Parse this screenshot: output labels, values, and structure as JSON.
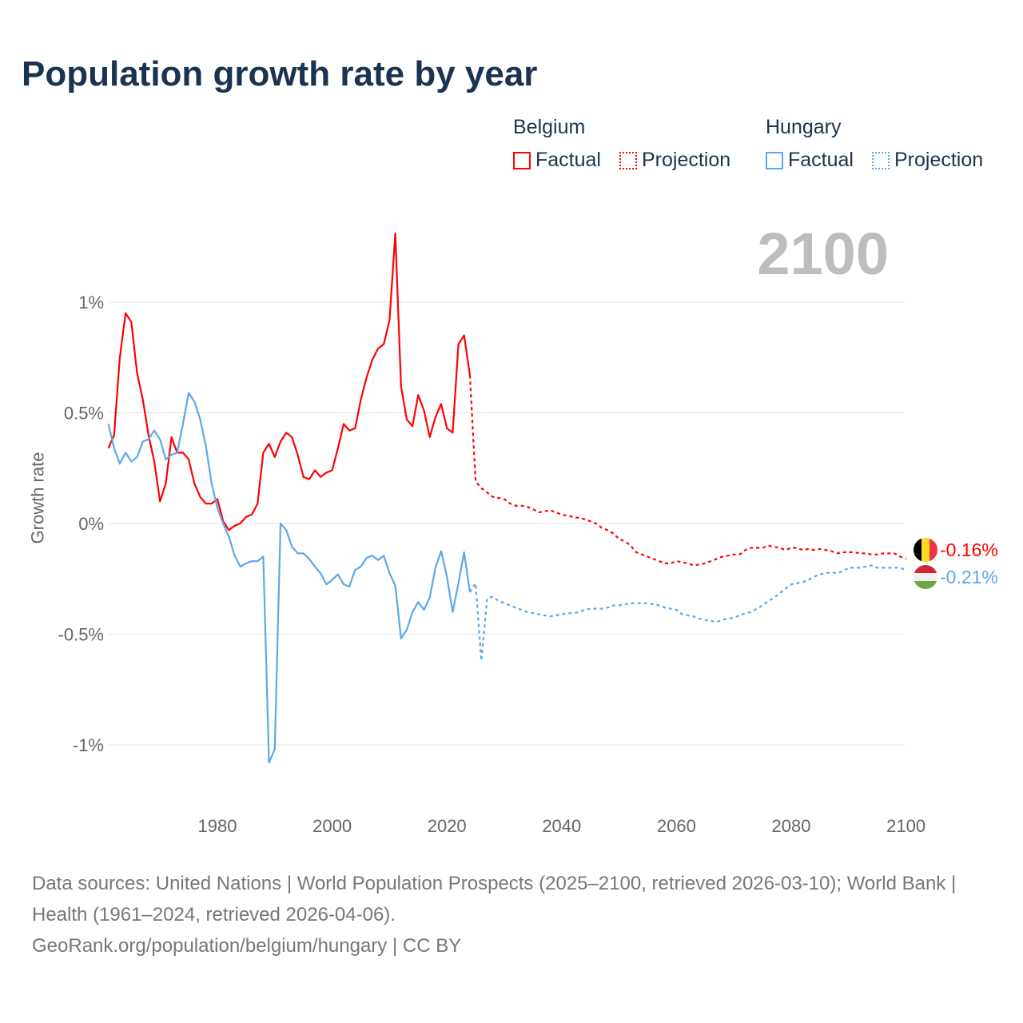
{
  "title": "Population growth rate by year",
  "current_year_label": "2100",
  "legend": {
    "groups": [
      {
        "name": "Belgium",
        "factual": "Factual",
        "projection": "Projection",
        "color": "#ff0000"
      },
      {
        "name": "Hungary",
        "factual": "Factual",
        "projection": "Projection",
        "color": "#5ca8ea"
      }
    ]
  },
  "end_labels": {
    "belgium": "-0.16%",
    "hungary": "-0.21%"
  },
  "footer": {
    "sources": "Data sources: United Nations | World Population Prospects (2025–2100, retrieved 2026-03-10); World Bank | Health (1961–2024, retrieved 2026-04-06).",
    "credit": "GeoRank.org/population/belgium/hungary | CC BY"
  },
  "chart_data": {
    "type": "line",
    "title": "Population growth rate by year",
    "xlabel": "",
    "ylabel": "Growth rate",
    "xlim": [
      1961,
      2100
    ],
    "ylim": [
      -1.15,
      1.35
    ],
    "x_ticks": [
      1980,
      2000,
      2020,
      2040,
      2060,
      2080,
      2100
    ],
    "x_tick_labels": [
      "1980",
      "2000",
      "2020",
      "2040",
      "2060",
      "2080",
      "2100"
    ],
    "y_ticks": [
      1,
      0.5,
      0,
      -0.5,
      -1
    ],
    "y_tick_labels": [
      "1%",
      "0.5%",
      "0%",
      "-0.5%",
      "-1%"
    ],
    "grid": true,
    "legend_position": "top-right",
    "series": [
      {
        "name": "Belgium Factual",
        "start_year": 1961,
        "style": "solid",
        "color": "#ff0000",
        "values": [
          0.34,
          0.4,
          0.75,
          0.95,
          0.91,
          0.68,
          0.56,
          0.4,
          0.28,
          0.1,
          0.18,
          0.39,
          0.32,
          0.32,
          0.29,
          0.18,
          0.12,
          0.09,
          0.09,
          0.11,
          0.01,
          -0.03,
          -0.01,
          0.0,
          0.03,
          0.04,
          0.09,
          0.32,
          0.36,
          0.3,
          0.37,
          0.41,
          0.39,
          0.31,
          0.21,
          0.2,
          0.24,
          0.21,
          0.23,
          0.24,
          0.34,
          0.45,
          0.42,
          0.43,
          0.56,
          0.66,
          0.74,
          0.79,
          0.81,
          0.92,
          1.31,
          0.62,
          0.47,
          0.44,
          0.58,
          0.51,
          0.39,
          0.48,
          0.54,
          0.43,
          0.41,
          0.81,
          0.85,
          0.67
        ]
      },
      {
        "name": "Belgium Projection",
        "start_year": 2024,
        "style": "dotted",
        "color": "#ff0000",
        "values": [
          0.67,
          0.19,
          0.16,
          0.14,
          0.12,
          0.115,
          0.11,
          0.09,
          0.08,
          0.08,
          0.075,
          0.065,
          0.05,
          0.055,
          0.06,
          0.05,
          0.04,
          0.035,
          0.03,
          0.025,
          0.02,
          0.01,
          0.0,
          -0.02,
          -0.03,
          -0.045,
          -0.07,
          -0.08,
          -0.1,
          -0.13,
          -0.14,
          -0.15,
          -0.16,
          -0.17,
          -0.18,
          -0.18,
          -0.17,
          -0.175,
          -0.18,
          -0.19,
          -0.185,
          -0.18,
          -0.17,
          -0.16,
          -0.15,
          -0.145,
          -0.14,
          -0.14,
          -0.12,
          -0.11,
          -0.11,
          -0.11,
          -0.1,
          -0.105,
          -0.11,
          -0.12,
          -0.11,
          -0.11,
          -0.12,
          -0.115,
          -0.12,
          -0.115,
          -0.12,
          -0.125,
          -0.135,
          -0.13,
          -0.13,
          -0.13,
          -0.135,
          -0.135,
          -0.14,
          -0.14,
          -0.135,
          -0.135,
          -0.135,
          -0.15,
          -0.16
        ]
      },
      {
        "name": "Hungary Factual",
        "start_year": 1961,
        "style": "solid",
        "color": "#5ca8ea",
        "values": [
          0.45,
          0.34,
          0.27,
          0.32,
          0.28,
          0.3,
          0.37,
          0.38,
          0.42,
          0.38,
          0.29,
          0.31,
          0.32,
          0.45,
          0.59,
          0.55,
          0.47,
          0.35,
          0.18,
          0.07,
          0.0,
          -0.06,
          -0.145,
          -0.195,
          -0.18,
          -0.17,
          -0.17,
          -0.15,
          -1.08,
          -1.02,
          0.0,
          -0.03,
          -0.105,
          -0.135,
          -0.135,
          -0.16,
          -0.195,
          -0.225,
          -0.275,
          -0.255,
          -0.23,
          -0.275,
          -0.285,
          -0.21,
          -0.195,
          -0.155,
          -0.145,
          -0.165,
          -0.145,
          -0.225,
          -0.28,
          -0.52,
          -0.48,
          -0.4,
          -0.355,
          -0.39,
          -0.335,
          -0.2,
          -0.125,
          -0.24,
          -0.4,
          -0.27,
          -0.13,
          -0.31
        ]
      },
      {
        "name": "Hungary Projection",
        "start_year": 2024,
        "style": "dotted",
        "color": "#5ca8ea",
        "values": [
          -0.31,
          -0.27,
          -0.62,
          -0.34,
          -0.33,
          -0.35,
          -0.36,
          -0.37,
          -0.38,
          -0.39,
          -0.4,
          -0.405,
          -0.41,
          -0.415,
          -0.42,
          -0.415,
          -0.41,
          -0.405,
          -0.405,
          -0.4,
          -0.39,
          -0.385,
          -0.385,
          -0.385,
          -0.38,
          -0.37,
          -0.37,
          -0.365,
          -0.36,
          -0.36,
          -0.36,
          -0.36,
          -0.365,
          -0.37,
          -0.38,
          -0.385,
          -0.39,
          -0.41,
          -0.415,
          -0.42,
          -0.43,
          -0.435,
          -0.44,
          -0.445,
          -0.435,
          -0.43,
          -0.425,
          -0.415,
          -0.405,
          -0.4,
          -0.385,
          -0.37,
          -0.35,
          -0.335,
          -0.315,
          -0.295,
          -0.275,
          -0.27,
          -0.265,
          -0.255,
          -0.24,
          -0.23,
          -0.225,
          -0.22,
          -0.225,
          -0.215,
          -0.2,
          -0.2,
          -0.2,
          -0.195,
          -0.19,
          -0.2,
          -0.2,
          -0.2,
          -0.2,
          -0.2,
          -0.21
        ]
      }
    ]
  }
}
